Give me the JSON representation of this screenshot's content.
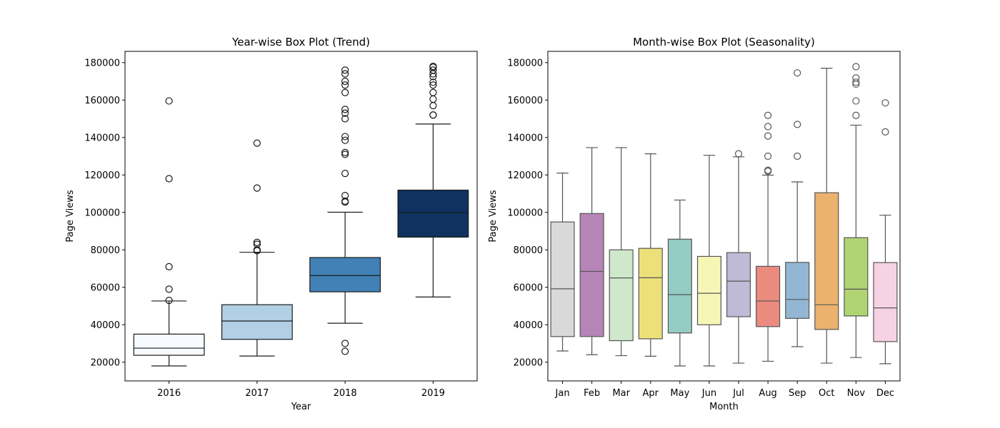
{
  "chart_data": [
    {
      "type": "box",
      "title": "Year-wise Box Plot (Trend)",
      "xlabel": "Year",
      "ylabel": "Page Views",
      "ylim": [
        10000,
        186000
      ],
      "yticks": [
        20000,
        40000,
        60000,
        80000,
        100000,
        120000,
        140000,
        160000,
        180000
      ],
      "categories": [
        "2016",
        "2017",
        "2018",
        "2019"
      ],
      "boxes": [
        {
          "category": "2016",
          "whisker_low": 18000,
          "q1": 23700,
          "median": 27500,
          "q3": 35000,
          "whisker_high": 52700,
          "outliers": [
            53000,
            59000,
            71000,
            118000,
            159500
          ],
          "color": "#f7fbff"
        },
        {
          "category": "2017",
          "whisker_low": 23300,
          "q1": 32200,
          "median": 42000,
          "q3": 50700,
          "whisker_high": 78700,
          "outliers": [
            79500,
            80000,
            83000,
            84000,
            113000,
            137000
          ],
          "color": "#b1cfe5"
        },
        {
          "category": "2018",
          "whisker_low": 40800,
          "q1": 57600,
          "median": 66300,
          "q3": 75900,
          "whisker_high": 100100,
          "outliers": [
            25800,
            30000,
            105500,
            106000,
            109000,
            120800,
            131000,
            132000,
            138500,
            140500,
            150000,
            153000,
            155000,
            164000,
            168000,
            170000,
            174000,
            176000
          ],
          "color": "#4281b6"
        },
        {
          "category": "2019",
          "whisker_low": 54800,
          "q1": 86800,
          "median": 99900,
          "q3": 111900,
          "whisker_high": 147200,
          "outliers": [
            152000,
            152000,
            157000,
            160500,
            164000,
            168000,
            169500,
            172500,
            174000,
            176000,
            177500,
            178000
          ],
          "color": "#0f3261"
        }
      ]
    },
    {
      "type": "box",
      "title": "Month-wise Box Plot (Seasonality)",
      "xlabel": "Month",
      "ylabel": "Page Views",
      "ylim": [
        10000,
        186000
      ],
      "yticks": [
        20000,
        40000,
        60000,
        80000,
        100000,
        120000,
        140000,
        160000,
        180000
      ],
      "categories": [
        "Jan",
        "Feb",
        "Mar",
        "Apr",
        "May",
        "Jun",
        "Jul",
        "Aug",
        "Sep",
        "Oct",
        "Nov",
        "Dec"
      ],
      "boxes": [
        {
          "category": "Jan",
          "whisker_low": 26000,
          "q1": 33700,
          "median": 59200,
          "q3": 94900,
          "whisker_high": 121000,
          "outliers": [],
          "color": "#d9d9d9"
        },
        {
          "category": "Feb",
          "whisker_low": 24000,
          "q1": 33700,
          "median": 68500,
          "q3": 99400,
          "whisker_high": 134600,
          "outliers": [],
          "color": "#b784b8"
        },
        {
          "category": "Mar",
          "whisker_low": 23500,
          "q1": 31500,
          "median": 65000,
          "q3": 80000,
          "whisker_high": 134600,
          "outliers": [],
          "color": "#cfe7cb"
        },
        {
          "category": "Apr",
          "whisker_low": 23200,
          "q1": 32500,
          "median": 65100,
          "q3": 80800,
          "whisker_high": 131300,
          "outliers": [],
          "color": "#ede07a"
        },
        {
          "category": "May",
          "whisker_low": 18000,
          "q1": 35600,
          "median": 56100,
          "q3": 85700,
          "whisker_high": 106600,
          "outliers": [],
          "color": "#94cbc2"
        },
        {
          "category": "Jun",
          "whisker_low": 18000,
          "q1": 40000,
          "median": 56800,
          "q3": 76500,
          "whisker_high": 130500,
          "outliers": [],
          "color": "#f6f6b7"
        },
        {
          "category": "Jul",
          "whisker_low": 19500,
          "q1": 44300,
          "median": 63300,
          "q3": 78500,
          "whisker_high": 129700,
          "outliers": [
            131300
          ],
          "color": "#c0bad7"
        },
        {
          "category": "Aug",
          "whisker_low": 20500,
          "q1": 39000,
          "median": 52700,
          "q3": 71200,
          "whisker_high": 119900,
          "outliers": [
            122000,
            122500,
            130000,
            140800,
            145800,
            151800
          ],
          "color": "#eb8b80"
        },
        {
          "category": "Sep",
          "whisker_low": 28300,
          "q1": 43400,
          "median": 53500,
          "q3": 73300,
          "whisker_high": 116300,
          "outliers": [
            130000,
            147000,
            174500
          ],
          "color": "#92b6d4"
        },
        {
          "category": "Oct",
          "whisker_low": 19500,
          "q1": 37500,
          "median": 50700,
          "q3": 110500,
          "whisker_high": 177000,
          "outliers": [],
          "color": "#ebb26e"
        },
        {
          "category": "Nov",
          "whisker_low": 22500,
          "q1": 44700,
          "median": 59000,
          "q3": 86500,
          "whisker_high": 146600,
          "outliers": [
            151800,
            159500,
            168500,
            169500,
            171800,
            177800
          ],
          "color": "#b0d472"
        },
        {
          "category": "Dec",
          "whisker_low": 19200,
          "q1": 31000,
          "median": 49000,
          "q3": 73200,
          "whisker_high": 98500,
          "outliers": [
            143000,
            158500
          ],
          "color": "#f6d2e4"
        }
      ]
    }
  ]
}
